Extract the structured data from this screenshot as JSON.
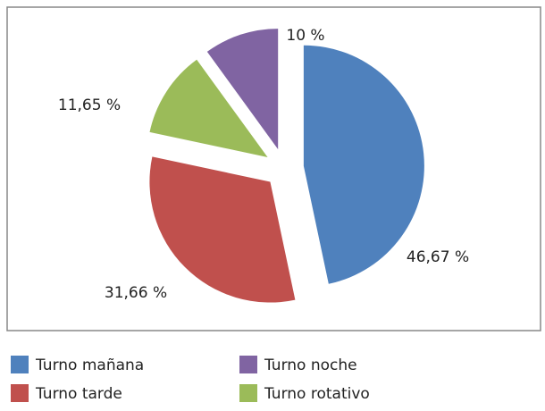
{
  "chart_data": {
    "type": "pie",
    "categories": [
      "Turno mañana",
      "Turno tarde",
      "Turno rotativo",
      "Turno noche"
    ],
    "values": [
      46.67,
      31.66,
      11.65,
      10
    ],
    "value_labels": [
      "46,67 %",
      "31,66 %",
      "11,65 %",
      "10 %"
    ],
    "colors": [
      "#4f81bd",
      "#c0504d",
      "#9bbb59",
      "#8064a2"
    ]
  }
}
